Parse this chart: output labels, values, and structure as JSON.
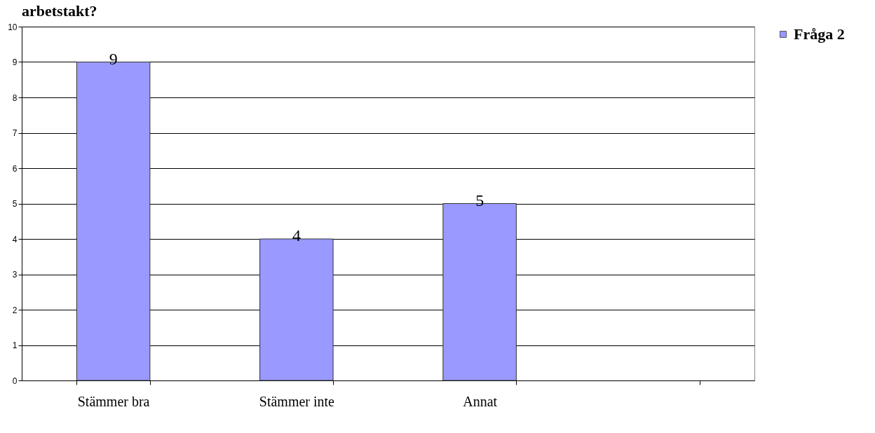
{
  "chart_data": {
    "type": "bar",
    "title": "arbetstakt?",
    "categories": [
      "Stämmer bra",
      "Stämmer inte",
      "Annat",
      null
    ],
    "series": [
      {
        "name": "Fråga 2",
        "color": "#9999ff",
        "values": [
          9,
          4,
          5,
          null
        ]
      }
    ],
    "ylim": [
      0,
      10
    ],
    "yticks": [
      0,
      1,
      2,
      3,
      4,
      5,
      6,
      7,
      8,
      9,
      10
    ],
    "grid": "y",
    "legend": "right",
    "data_labels": true
  }
}
